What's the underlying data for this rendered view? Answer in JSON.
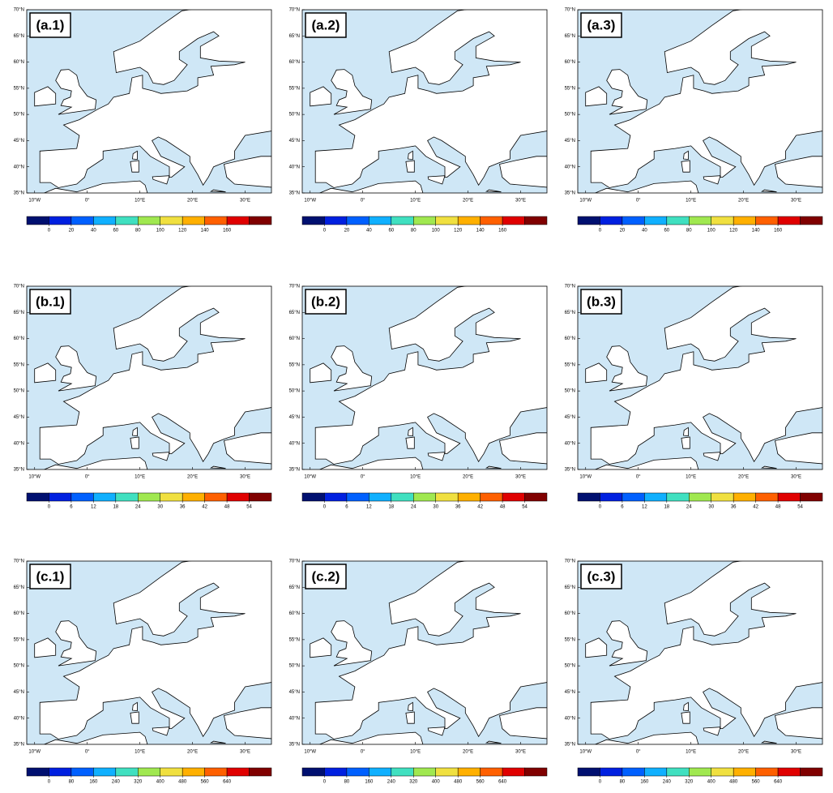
{
  "latlim": [
    35,
    70
  ],
  "lonlim": [
    -11.5,
    35
  ],
  "latticks": [
    {
      "value": 35,
      "label": "35°N"
    },
    {
      "value": 40,
      "label": "40°N"
    },
    {
      "value": 45,
      "label": "45°N"
    },
    {
      "value": 50,
      "label": "50°N"
    },
    {
      "value": 55,
      "label": "55°N"
    },
    {
      "value": 60,
      "label": "60°N"
    },
    {
      "value": 65,
      "label": "65°N"
    },
    {
      "value": 70,
      "label": "70°N"
    }
  ],
  "lonticks": [
    {
      "value": -10,
      "label": "10°W"
    },
    {
      "value": 0,
      "label": "0°"
    },
    {
      "value": 10,
      "label": "10°E"
    },
    {
      "value": 20,
      "label": "20°E"
    },
    {
      "value": 30,
      "label": "30°E"
    }
  ],
  "colorbar_colors": [
    "#001070",
    "#0020e0",
    "#0060ff",
    "#10b0ff",
    "#40e0c0",
    "#a0e850",
    "#f0e040",
    "#ffb000",
    "#ff6000",
    "#e00000",
    "#800000"
  ],
  "panels": [
    {
      "label": "(a.1)",
      "colorbar_ticks": [
        0,
        20,
        40,
        60,
        80,
        100,
        120,
        140,
        160
      ]
    },
    {
      "label": "(a.2)",
      "colorbar_ticks": [
        0,
        20,
        40,
        60,
        80,
        100,
        120,
        140,
        160
      ]
    },
    {
      "label": "(a.3)",
      "colorbar_ticks": [
        0,
        20,
        40,
        60,
        80,
        100,
        120,
        140,
        160
      ]
    },
    {
      "label": "(b.1)",
      "colorbar_ticks": [
        0,
        6,
        12,
        18,
        24,
        30,
        36,
        42,
        48,
        54
      ]
    },
    {
      "label": "(b.2)",
      "colorbar_ticks": [
        0,
        6,
        12,
        18,
        24,
        30,
        36,
        42,
        48,
        54
      ]
    },
    {
      "label": "(b.3)",
      "colorbar_ticks": [
        0,
        6,
        12,
        18,
        24,
        30,
        36,
        42,
        48,
        54
      ]
    },
    {
      "label": "(c.1)",
      "colorbar_ticks": [
        0,
        80,
        160,
        240,
        320,
        400,
        480,
        560,
        640
      ]
    },
    {
      "label": "(c.2)",
      "colorbar_ticks": [
        0,
        80,
        160,
        240,
        320,
        400,
        480,
        560,
        640
      ]
    },
    {
      "label": "(c.3)",
      "colorbar_ticks": [
        0,
        80,
        160,
        240,
        320,
        400,
        480,
        560,
        640
      ]
    }
  ]
}
